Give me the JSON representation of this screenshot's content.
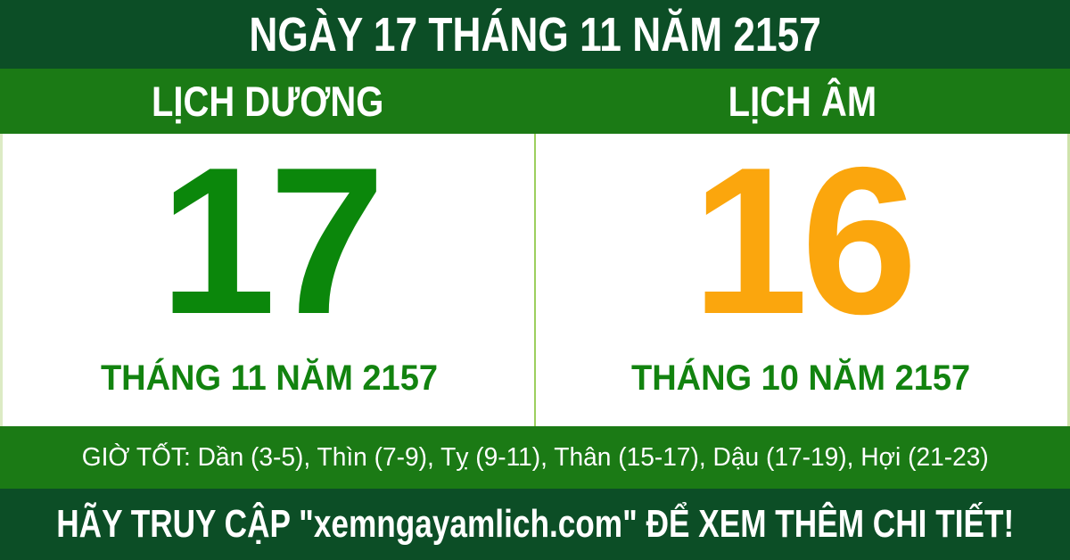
{
  "banner": {
    "title": "NGÀY 17 THÁNG 11 NĂM 2157"
  },
  "calendars": {
    "solar": {
      "tab": "LỊCH DƯƠNG",
      "day": "17",
      "month_year": "THÁNG 11 NĂM 2157",
      "day_color": "#0b870b"
    },
    "lunar": {
      "tab": "LỊCH ÂM",
      "day": "16",
      "month_year": "THÁNG 10 NĂM 2157",
      "day_color": "#fba60d"
    }
  },
  "good_hours": {
    "text": "GIỜ TỐT: Dần (3-5), Thìn (7-9), Tỵ (9-11), Thân (15-17), Dậu (17-19), Hợi (21-23)"
  },
  "footer": {
    "cta": "HÃY TRUY CẬP \"xemngayamlich.com\" ĐỂ XEM THÊM CHI TIẾT!",
    "website": "xemngayamlich.com"
  },
  "colors": {
    "dark_green": "#0c4e26",
    "green": "#1b7a15",
    "subtitle_green": "#12830f",
    "solar_day_green": "#0b870b",
    "lunar_day_orange": "#fba60d",
    "divider_light_green": "#9ccf5e",
    "text_white": "#ffffff"
  }
}
